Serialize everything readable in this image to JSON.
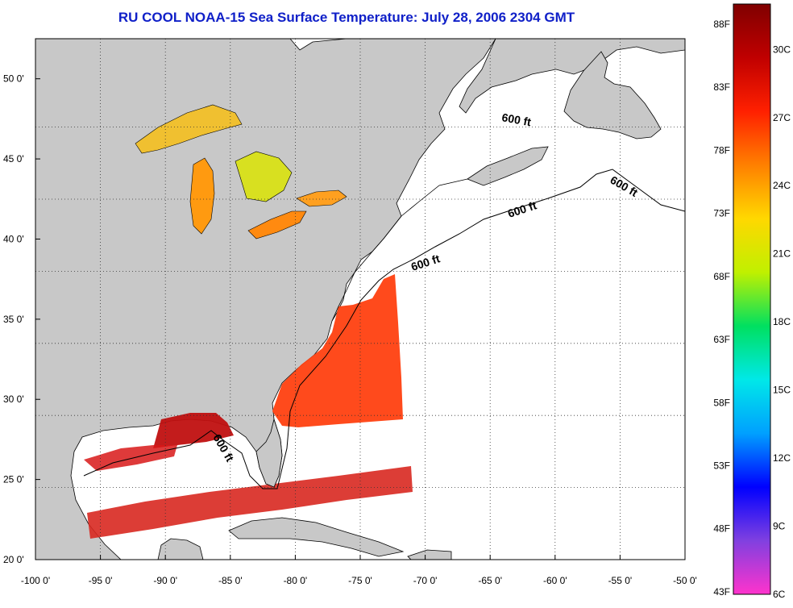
{
  "title": "RU COOL  NOAA-15  Sea Surface Temperature:  July 28, 2006 2304 GMT",
  "map": {
    "lon_range": [
      -100,
      -50
    ],
    "lat_range": [
      20,
      52.5
    ],
    "lon_ticks": [
      -100,
      -95,
      -90,
      -85,
      -80,
      -75,
      -70,
      -65,
      -60,
      -55,
      -50
    ],
    "lat_ticks": [
      20,
      25,
      30,
      35,
      40,
      45,
      50
    ],
    "lon_labels": [
      "-100 0'",
      "-95 0'",
      "-90 0'",
      "-85 0'",
      "-80 0'",
      "-75 0'",
      "-70 0'",
      "-65 0'",
      "-60 0'",
      "-55 0'",
      "-50 0'"
    ],
    "lat_labels": [
      "20 0'",
      "25 0'",
      "30 0'",
      "35 0'",
      "40 0'",
      "45 0'",
      "50 0'"
    ],
    "grid": "dotted",
    "land_color": "#c8c8c8",
    "ocean_color": "#ffffff",
    "contour_label": "600 ft"
  },
  "colorbar": {
    "min_c": 6,
    "max_c": 32,
    "fahrenheit_labels": [
      "43F",
      "48F",
      "53F",
      "58F",
      "63F",
      "68F",
      "73F",
      "78F",
      "83F",
      "88F"
    ],
    "celsius_labels": [
      "6C",
      "9C",
      "12C",
      "15C",
      "18C",
      "21C",
      "24C",
      "27C",
      "30C"
    ],
    "colors": [
      "#ff33cc",
      "#8040e0",
      "#0000ff",
      "#00a0ff",
      "#00e8e8",
      "#00e060",
      "#c0f000",
      "#ffd800",
      "#ff8000",
      "#ff2000",
      "#c00000",
      "#800000"
    ]
  }
}
